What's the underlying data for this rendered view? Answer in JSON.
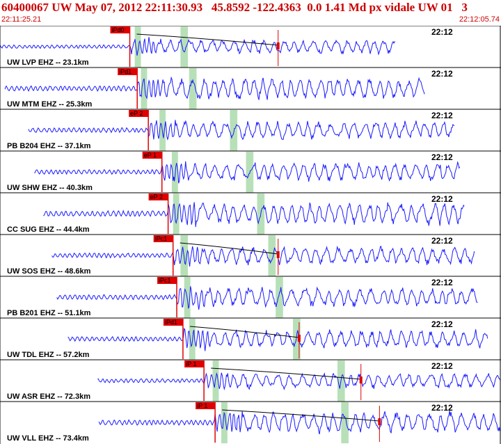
{
  "header": {
    "title": "60400067 UW May 07, 2012 22:11:30.93   45.8592 -122.4363  0.0 1.41 Md px vidale UW 01   3",
    "start_time": "22:11:25.21",
    "end_time": "22:12:05.74"
  },
  "colors": {
    "header_text": "#cc0000",
    "trace": "#1a1aff",
    "pick_marker": "#e00000",
    "pick_box": "#e00000",
    "window_band": "#b8e0b8",
    "coda_curve": "#000000",
    "border": "#000000"
  },
  "chart_data": {
    "type": "seismogram",
    "x_unit": "time (UTC)",
    "x_range": [
      "22:11:25.21",
      "22:12:05.74"
    ],
    "traces": [
      {
        "label": "UW LVP EHZ -- 23.1km",
        "time_tick": "22:12",
        "pick": "iPd0",
        "pick_time_s": 10.5,
        "trace_start_s": 0.0,
        "trace_end_s": 32.0,
        "coda_end_s": 22.5,
        "amplitude": 0.55,
        "windows_s": [
          [
            10.9,
            11.4
          ],
          [
            14.6,
            15.2
          ]
        ]
      },
      {
        "label": "UW MTM EHZ -- 25.3km",
        "time_tick": "22:12",
        "pick": "iPd1",
        "pick_time_s": 11.1,
        "trace_start_s": 0.4,
        "trace_end_s": 34.4,
        "coda_end_s": null,
        "amplitude": 0.8,
        "windows_s": [
          [
            11.4,
            11.9
          ],
          [
            15.3,
            15.9
          ]
        ]
      },
      {
        "label": "PB B204 EHZ -- 37.1km",
        "time_tick": "22:12",
        "pick": "eP 2",
        "pick_time_s": 12.0,
        "trace_start_s": 2.3,
        "trace_end_s": 36.8,
        "coda_end_s": null,
        "amplitude": 0.7,
        "windows_s": [
          [
            12.9,
            13.4
          ],
          [
            18.6,
            19.2
          ]
        ]
      },
      {
        "label": "UW SHW EHZ -- 40.3km",
        "time_tick": "22:12",
        "pick": "eP 1",
        "pick_time_s": 13.1,
        "trace_start_s": 2.8,
        "trace_end_s": 37.2,
        "coda_end_s": null,
        "amplitude": 0.7,
        "windows_s": [
          [
            13.9,
            14.4
          ],
          [
            19.9,
            20.5
          ]
        ]
      },
      {
        "label": "CC SUG EHZ -- 44.4km",
        "time_tick": "22:12",
        "pick": "eP 2",
        "pick_time_s": 13.6,
        "trace_start_s": 3.5,
        "trace_end_s": 37.6,
        "coda_end_s": null,
        "amplitude": 0.85,
        "windows_s": [
          [
            14.0,
            14.5
          ],
          [
            20.8,
            21.4
          ]
        ]
      },
      {
        "label": "UW SOS EHZ -- 48.6km",
        "time_tick": "22:12",
        "pick": "iPc1",
        "pick_time_s": 14.0,
        "trace_start_s": 4.2,
        "trace_end_s": 38.4,
        "coda_end_s": 22.5,
        "amplitude": 0.7,
        "windows_s": [
          [
            14.6,
            15.2
          ],
          [
            21.7,
            22.3
          ]
        ]
      },
      {
        "label": "PB B201 EHZ -- 51.1km",
        "time_tick": "22:12",
        "pick": "iPc1",
        "pick_time_s": 14.3,
        "trace_start_s": 4.6,
        "trace_end_s": 38.7,
        "coda_end_s": null,
        "amplitude": 0.75,
        "windows_s": [
          [
            14.9,
            15.4
          ],
          [
            22.3,
            22.9
          ]
        ]
      },
      {
        "label": "UW TDL EHZ -- 57.2km",
        "time_tick": "22:12",
        "pick": "iPd1",
        "pick_time_s": 14.8,
        "trace_start_s": 5.5,
        "trace_end_s": 39.5,
        "coda_end_s": 24.2,
        "amplitude": 0.7,
        "windows_s": [
          [
            15.3,
            15.8
          ],
          [
            23.7,
            24.3
          ]
        ]
      },
      {
        "label": "UW ASR EHZ -- 72.3km",
        "time_tick": "22:12",
        "pick": "iP 1",
        "pick_time_s": 16.5,
        "trace_start_s": 7.9,
        "trace_end_s": 40.53,
        "coda_end_s": 29.2,
        "amplitude": 0.6,
        "windows_s": [
          [
            17.2,
            17.7
          ],
          [
            27.3,
            27.9
          ]
        ]
      },
      {
        "label": "UW VLL EHZ -- 73.4km",
        "time_tick": "22:12",
        "pick": "iP 1",
        "pick_time_s": 17.4,
        "trace_start_s": 8.0,
        "trace_end_s": 40.53,
        "coda_end_s": 30.7,
        "amplitude": 0.8,
        "windows_s": [
          [
            17.9,
            18.4
          ],
          [
            27.6,
            28.2
          ]
        ]
      }
    ]
  }
}
